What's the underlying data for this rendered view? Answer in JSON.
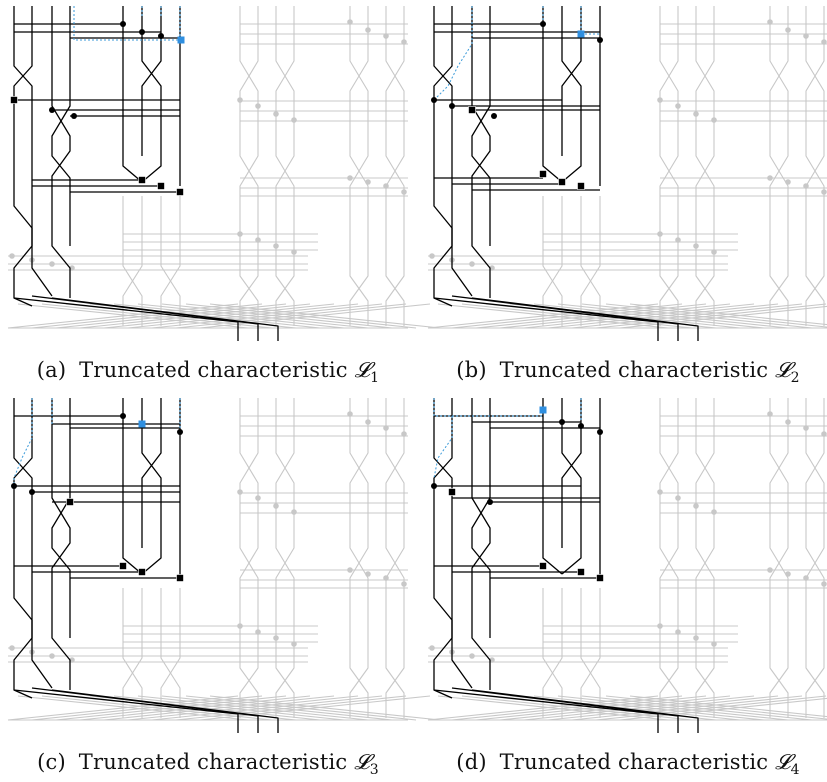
{
  "panels": [
    {
      "label": "(a)",
      "caption": "Truncated characteristic",
      "symbol": "𝓛",
      "subscript": "1"
    },
    {
      "label": "(b)",
      "caption": "Truncated characteristic",
      "symbol": "𝓛",
      "subscript": "2"
    },
    {
      "label": "(c)",
      "caption": "Truncated characteristic",
      "symbol": "𝓛",
      "subscript": "3"
    },
    {
      "label": "(d)",
      "caption": "Truncated characteristic",
      "symbol": "𝓛",
      "subscript": "4"
    }
  ],
  "colors": {
    "active_path": "#000000",
    "inactive_network": "#c8c8c8",
    "dotted_trace": "#3a9ad9",
    "highlight_node": "#2f8fe0"
  }
}
